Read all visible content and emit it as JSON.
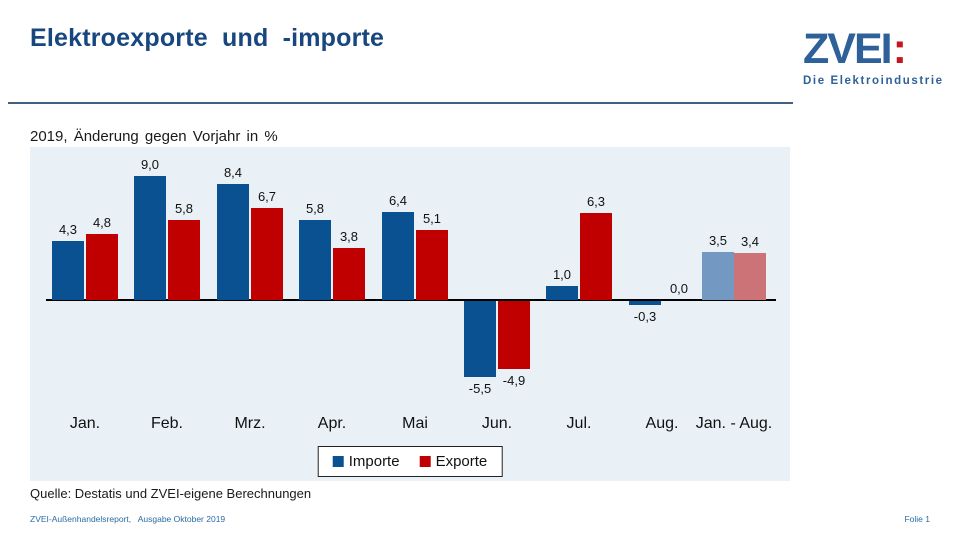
{
  "slide": {
    "title": "Elektroexporte und -importe",
    "subtitle": "2019, Änderung gegen Vorjahr in %",
    "source": "Quelle: Destatis und ZVEI-eigene Berechnungen",
    "footer_left": "ZVEI-Außenhandelsreport,   Ausgabe Oktober 2019",
    "footer_right": "Folie 1"
  },
  "logo": {
    "name": "ZVEI",
    "colon": ":",
    "tagline": "Die Elektroindustrie",
    "blue": "#2E6199",
    "red": "#C3161F"
  },
  "chart_data": {
    "type": "bar",
    "title": "Elektroexporte und -importe",
    "subtitle": "2019, Änderung gegen Vorjahr in %",
    "categories": [
      "Jan.",
      "Feb.",
      "Mrz.",
      "Apr.",
      "Mai",
      "Jun.",
      "Jul.",
      "Aug.",
      "Jan. - Aug."
    ],
    "series": [
      {
        "name": "Importe",
        "values": [
          4.3,
          9.0,
          8.4,
          5.8,
          6.4,
          -5.5,
          1.0,
          -0.3,
          3.5
        ],
        "labels": [
          "4,3",
          "9,0",
          "8,4",
          "5,8",
          "6,4",
          "-5,5",
          "1,0",
          "-0,3",
          "3,5"
        ],
        "color": "#0A5191",
        "color_last_group": "#7399C3"
      },
      {
        "name": "Exporte",
        "values": [
          4.8,
          5.8,
          6.7,
          3.8,
          5.1,
          -4.9,
          6.3,
          0.0,
          3.4
        ],
        "labels": [
          "4,8",
          "5,8",
          "6,7",
          "3,8",
          "5,1",
          "-4,9",
          "6,3",
          "0,0",
          "3,4"
        ],
        "color": "#C00000",
        "color_last_group": "#CB7377"
      }
    ],
    "ylim": [
      -7,
      11
    ],
    "grid": false,
    "legend_position": "bottom",
    "plot_background": "#E9F1F6",
    "axis_color": "#000000",
    "last_group_muted": true
  }
}
